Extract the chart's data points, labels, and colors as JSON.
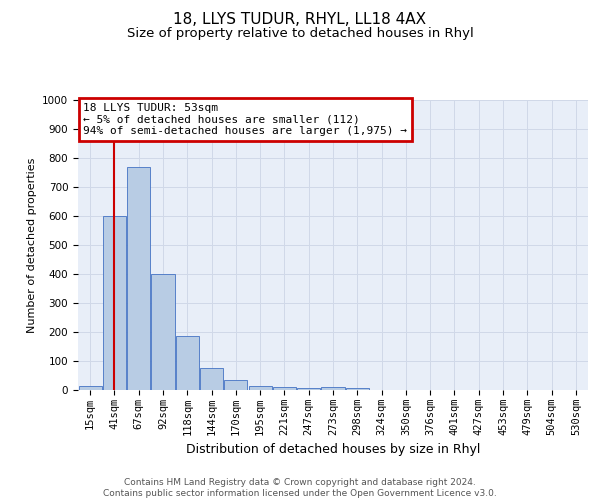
{
  "title1": "18, LLYS TUDUR, RHYL, LL18 4AX",
  "title2": "Size of property relative to detached houses in Rhyl",
  "xlabel": "Distribution of detached houses by size in Rhyl",
  "ylabel": "Number of detached properties",
  "categories": [
    "15sqm",
    "41sqm",
    "67sqm",
    "92sqm",
    "118sqm",
    "144sqm",
    "170sqm",
    "195sqm",
    "221sqm",
    "247sqm",
    "273sqm",
    "298sqm",
    "324sqm",
    "350sqm",
    "376sqm",
    "401sqm",
    "427sqm",
    "453sqm",
    "479sqm",
    "504sqm",
    "530sqm"
  ],
  "values": [
    15,
    600,
    770,
    400,
    185,
    75,
    35,
    15,
    10,
    8,
    10,
    8,
    0,
    0,
    0,
    0,
    0,
    0,
    0,
    0,
    0
  ],
  "bar_color": "#b8cce4",
  "bar_edgecolor": "#4472c4",
  "vline_x": 1,
  "vline_color": "#cc0000",
  "annotation_box_text": "18 LLYS TUDUR: 53sqm\n← 5% of detached houses are smaller (112)\n94% of semi-detached houses are larger (1,975) →",
  "annotation_box_color": "#cc0000",
  "ylim": [
    0,
    1000
  ],
  "yticks": [
    0,
    100,
    200,
    300,
    400,
    500,
    600,
    700,
    800,
    900,
    1000
  ],
  "grid_color": "#d0d8e8",
  "background_color": "#e8eef8",
  "footer_line1": "Contains HM Land Registry data © Crown copyright and database right 2024.",
  "footer_line2": "Contains public sector information licensed under the Open Government Licence v3.0.",
  "title1_fontsize": 11,
  "title2_fontsize": 9.5,
  "xlabel_fontsize": 9,
  "ylabel_fontsize": 8,
  "tick_fontsize": 7.5,
  "annot_fontsize": 8,
  "footer_fontsize": 6.5
}
